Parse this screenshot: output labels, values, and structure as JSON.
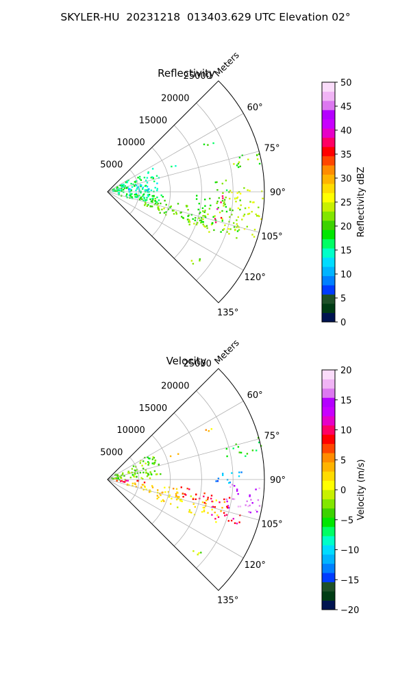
{
  "title": "SKYLER-HU  20231218  013403.629 UTC Elevation 02°",
  "chart_data": [
    {
      "type": "heatmap",
      "projection": "polar-sector",
      "title": "Reflectivity",
      "radial_label": "Meters",
      "r_ticks": [
        5000,
        10000,
        15000,
        20000,
        25000
      ],
      "r_tick_labels": [
        "5000",
        "10000",
        "15000",
        "20000",
        "25000"
      ],
      "r_max": 25000,
      "azimuth_range": [
        45,
        135
      ],
      "azimuth_ticks": [
        "60°",
        "75°",
        "90°",
        "105°",
        "120°",
        "135°"
      ],
      "grid": true,
      "colorbar": {
        "label": "Reflectivity dBZ",
        "min": 0,
        "max": 50,
        "ticks": [
          "0",
          "5",
          "10",
          "15",
          "20",
          "25",
          "30",
          "35",
          "40",
          "45",
          "50"
        ],
        "colors": [
          "#001450",
          "#003c14",
          "#1e5028",
          "#003cff",
          "#0080ff",
          "#00b4ff",
          "#00dcff",
          "#00ffc8",
          "#00ff64",
          "#00e600",
          "#3cd200",
          "#82e600",
          "#c8f000",
          "#ffff00",
          "#ffdc00",
          "#ffb400",
          "#ff8c00",
          "#ff4600",
          "#ff0000",
          "#ff0064",
          "#e600c8",
          "#c800ff",
          "#b400ff",
          "#dc78f0",
          "#f0b4f5",
          "#fadcfa"
        ]
      },
      "echo_regions": [
        {
          "az": [
            52,
            80
          ],
          "r": [
            600,
            1800
          ],
          "value": 17
        },
        {
          "az": [
            58,
            102
          ],
          "r": [
            1500,
            8500
          ],
          "value": 16
        },
        {
          "az": [
            76,
            88
          ],
          "r": [
            3000,
            7000
          ],
          "value": 12
        },
        {
          "az": [
            94,
            105
          ],
          "r": [
            2000,
            9000
          ],
          "value": 19
        },
        {
          "az": [
            98,
            110
          ],
          "r": [
            6000,
            16000
          ],
          "value": 20
        },
        {
          "az": [
            104,
            112
          ],
          "r": [
            8000,
            19000
          ],
          "value": 22
        },
        {
          "az": [
            92,
            110
          ],
          "r": [
            14000,
            22000
          ],
          "value": 21
        },
        {
          "az": [
            88,
            108
          ],
          "r": [
            18000,
            25000
          ],
          "value": 24
        },
        {
          "az": [
            74,
            80
          ],
          "r": [
            19000,
            25000
          ],
          "value": 21
        },
        {
          "az": [
            84,
            90
          ],
          "r": [
            17000,
            20000
          ],
          "value": 20
        },
        {
          "az": [
            62,
            66
          ],
          "r": [
            17000,
            19000
          ],
          "value": 18
        },
        {
          "az": [
            67,
            70
          ],
          "r": [
            10500,
            12000
          ],
          "value": 16
        },
        {
          "az": [
            126,
            131
          ],
          "r": [
            17000,
            19000
          ],
          "value": 21
        },
        {
          "az": [
            87,
            106
          ],
          "r": [
            17500,
            18500
          ],
          "value": 37
        }
      ]
    },
    {
      "type": "heatmap",
      "projection": "polar-sector",
      "title": "Velocity",
      "radial_label": "Meters",
      "r_ticks": [
        5000,
        10000,
        15000,
        20000,
        25000
      ],
      "r_tick_labels": [
        "5000",
        "10000",
        "15000",
        "20000",
        "25000"
      ],
      "r_max": 25000,
      "azimuth_range": [
        45,
        135
      ],
      "azimuth_ticks": [
        "60°",
        "75°",
        "90°",
        "105°",
        "120°",
        "135°"
      ],
      "grid": true,
      "colorbar": {
        "label": "Velocity (m/s)",
        "min": -20,
        "max": 20,
        "ticks": [
          "−20",
          "−15",
          "−10",
          "−5",
          "0",
          "5",
          "10",
          "15",
          "20"
        ],
        "colors": [
          "#001450",
          "#003c14",
          "#1e5028",
          "#003cff",
          "#0080ff",
          "#00b4ff",
          "#00dcff",
          "#00ffc8",
          "#00ff64",
          "#00e600",
          "#3cd200",
          "#82e600",
          "#c8f000",
          "#ffff00",
          "#ffdc00",
          "#ffb400",
          "#ff8c00",
          "#ff4600",
          "#ff0000",
          "#ff0064",
          "#e600c8",
          "#c800ff",
          "#b400ff",
          "#dc78f0",
          "#f0b4f5",
          "#fadcfa"
        ]
      },
      "echo_regions": [
        {
          "az": [
            52,
            80
          ],
          "r": [
            600,
            1800
          ],
          "value": -2
        },
        {
          "az": [
            58,
            88
          ],
          "r": [
            1500,
            8500
          ],
          "value": -3
        },
        {
          "az": [
            90,
            96
          ],
          "r": [
            800,
            6000
          ],
          "value": 9
        },
        {
          "az": [
            96,
            106
          ],
          "r": [
            3000,
            12000
          ],
          "value": 3
        },
        {
          "az": [
            100,
            112
          ],
          "r": [
            8000,
            19000
          ],
          "value": 2
        },
        {
          "az": [
            95,
            104
          ],
          "r": [
            11000,
            17000
          ],
          "value": 8
        },
        {
          "az": [
            98,
            110
          ],
          "r": [
            17000,
            22000
          ],
          "value": 10
        },
        {
          "az": [
            92,
            104
          ],
          "r": [
            19000,
            25000
          ],
          "value": 16
        },
        {
          "az": [
            86,
            92
          ],
          "r": [
            17000,
            22000
          ],
          "value": -12
        },
        {
          "az": [
            74,
            80
          ],
          "r": [
            19000,
            25000
          ],
          "value": -5
        },
        {
          "az": [
            62,
            66
          ],
          "r": [
            17000,
            19000
          ],
          "value": 3
        },
        {
          "az": [
            67,
            70
          ],
          "r": [
            10500,
            12000
          ],
          "value": 3
        },
        {
          "az": [
            126,
            131
          ],
          "r": [
            17000,
            19000
          ],
          "value": -2
        }
      ]
    }
  ]
}
